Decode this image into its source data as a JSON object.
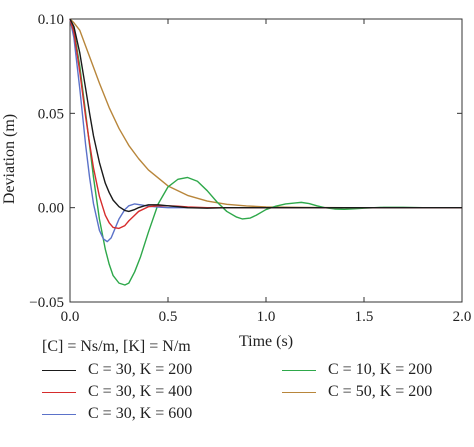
{
  "chart_data": {
    "type": "line",
    "xlabel": "Time (s)",
    "ylabel": "Deviation (m)",
    "xlim": [
      0.0,
      2.0
    ],
    "ylim": [
      -0.05,
      0.1
    ],
    "x_ticks": [
      "0.0",
      "0.5",
      "1.0",
      "1.5",
      "2.0"
    ],
    "y_ticks": [
      "-0.05",
      "0.00",
      "0.05",
      "0.10"
    ],
    "grid": false,
    "legend_header": "[C] = Ns/m, [K] = N/m",
    "legend_position": "bottom",
    "series": [
      {
        "name": "C = 30, K = 200",
        "color": "#1a1a1a",
        "x": [
          0,
          0.02,
          0.05,
          0.08,
          0.1,
          0.12,
          0.15,
          0.18,
          0.2,
          0.22,
          0.25,
          0.28,
          0.3,
          0.33,
          0.35,
          0.38,
          0.4,
          0.45,
          0.5,
          0.55,
          0.6,
          0.7,
          0.8,
          1.0,
          1.2,
          1.5,
          2.0
        ],
        "y": [
          0.1,
          0.096,
          0.082,
          0.063,
          0.05,
          0.038,
          0.024,
          0.013,
          0.008,
          0.004,
          0.0005,
          -0.0015,
          -0.002,
          -0.001,
          0.0,
          0.001,
          0.0015,
          0.0015,
          0.001,
          0.0005,
          0.0,
          -0.0003,
          0.0,
          0.0,
          0.0,
          0.0,
          0.0
        ]
      },
      {
        "name": "C = 30, K = 400",
        "color": "#d62c2c",
        "x": [
          0,
          0.02,
          0.05,
          0.08,
          0.1,
          0.12,
          0.15,
          0.18,
          0.2,
          0.22,
          0.25,
          0.28,
          0.3,
          0.33,
          0.35,
          0.4,
          0.45,
          0.5,
          0.55,
          0.6,
          0.7,
          0.8,
          1.0,
          1.5,
          2.0
        ],
        "y": [
          0.1,
          0.093,
          0.072,
          0.048,
          0.034,
          0.021,
          0.006,
          -0.004,
          -0.008,
          -0.0105,
          -0.011,
          -0.0095,
          -0.007,
          -0.004,
          -0.002,
          0.0005,
          0.001,
          0.001,
          0.0008,
          0.0004,
          0.0,
          0.0,
          0.0,
          0.0,
          0.0
        ]
      },
      {
        "name": "C = 30, K = 600",
        "color": "#5b72c9",
        "x": [
          0,
          0.02,
          0.05,
          0.08,
          0.1,
          0.12,
          0.15,
          0.17,
          0.19,
          0.21,
          0.23,
          0.25,
          0.28,
          0.3,
          0.33,
          0.36,
          0.4,
          0.45,
          0.5,
          0.6,
          0.7,
          1.0,
          1.5,
          2.0
        ],
        "y": [
          0.1,
          0.09,
          0.063,
          0.033,
          0.016,
          0.002,
          -0.012,
          -0.0165,
          -0.018,
          -0.016,
          -0.011,
          -0.006,
          -0.001,
          0.001,
          0.002,
          0.0015,
          0.0008,
          0.0003,
          0.0,
          0.0,
          0.0,
          0.0,
          0.0,
          0.0
        ]
      },
      {
        "name": "C = 10, K = 200",
        "color": "#2ea84a",
        "x": [
          0,
          0.02,
          0.05,
          0.08,
          0.1,
          0.12,
          0.15,
          0.18,
          0.2,
          0.22,
          0.25,
          0.28,
          0.3,
          0.33,
          0.36,
          0.4,
          0.45,
          0.5,
          0.55,
          0.6,
          0.65,
          0.7,
          0.75,
          0.8,
          0.85,
          0.88,
          0.92,
          0.95,
          1.0,
          1.05,
          1.1,
          1.15,
          1.18,
          1.22,
          1.26,
          1.3,
          1.35,
          1.4,
          1.45,
          1.5,
          1.6,
          1.7,
          1.8,
          2.0
        ],
        "y": [
          0.1,
          0.094,
          0.075,
          0.05,
          0.033,
          0.016,
          -0.006,
          -0.022,
          -0.03,
          -0.036,
          -0.04,
          -0.041,
          -0.04,
          -0.034,
          -0.026,
          -0.013,
          0.002,
          0.011,
          0.015,
          0.016,
          0.014,
          0.009,
          0.003,
          -0.002,
          -0.005,
          -0.006,
          -0.0055,
          -0.004,
          -0.001,
          0.0008,
          0.002,
          0.0025,
          0.0028,
          0.0022,
          0.001,
          0.0,
          -0.0007,
          -0.0009,
          -0.0006,
          -0.0003,
          0.0002,
          0.0002,
          0.0,
          0.0
        ]
      },
      {
        "name": "C = 50, K = 200",
        "color": "#b8863b",
        "x": [
          0,
          0.02,
          0.05,
          0.1,
          0.15,
          0.2,
          0.25,
          0.3,
          0.35,
          0.4,
          0.5,
          0.6,
          0.7,
          0.8,
          0.9,
          1.0,
          1.2,
          1.4,
          1.6,
          2.0
        ],
        "y": [
          0.1,
          0.098,
          0.094,
          0.08,
          0.066,
          0.053,
          0.042,
          0.033,
          0.026,
          0.02,
          0.0115,
          0.0065,
          0.0035,
          0.0018,
          0.0009,
          0.0004,
          0.0001,
          0.0,
          0.0,
          0.0
        ]
      }
    ]
  }
}
